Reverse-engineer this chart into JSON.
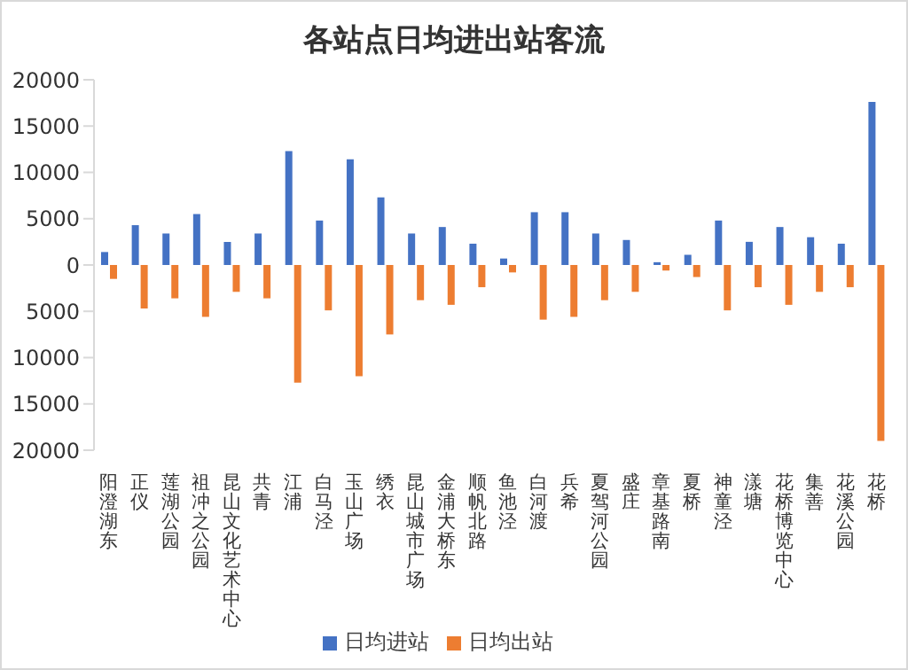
{
  "chart_data": {
    "type": "bar",
    "title": "各站点日均进出站客流",
    "categories": [
      "阳澄湖东",
      "正仪",
      "莲湖公园",
      "祖冲之公园",
      "昆山文化艺术中心",
      "共青",
      "江浦",
      "白马泾",
      "玉山广场",
      "绣衣",
      "昆山城市广场",
      "金浦大桥东",
      "顺帆北路",
      "鱼池泾",
      "白河渡",
      "兵希",
      "夏驾河公园",
      "盛庄",
      "章基路南",
      "夏桥",
      "神童泾",
      "漾塘",
      "花桥博览中心",
      "集善",
      "花溪公园",
      "花桥"
    ],
    "series": [
      {
        "name": "日均进站",
        "color": "#4472c4",
        "values": [
          1400,
          4300,
          3400,
          5500,
          2500,
          3400,
          12300,
          4800,
          11400,
          7300,
          3400,
          4100,
          2300,
          700,
          5700,
          5700,
          3400,
          2700,
          300,
          1100,
          4800,
          2500,
          4100,
          3000,
          2300,
          17600
        ]
      },
      {
        "name": "日均出站",
        "color": "#ed7d31",
        "values": [
          -1500,
          -4700,
          -3600,
          -5600,
          -2900,
          -3600,
          -12700,
          -4900,
          -12000,
          -7500,
          -3800,
          -4300,
          -2400,
          -800,
          -5900,
          -5600,
          -3800,
          -2900,
          -600,
          -1300,
          -4900,
          -2400,
          -4300,
          -2900,
          -2400,
          -19000
        ]
      }
    ],
    "ylim": [
      -20000,
      20000
    ],
    "yticks": [
      {
        "value": -20000,
        "label": "20000"
      },
      {
        "value": -15000,
        "label": "15000"
      },
      {
        "value": -10000,
        "label": "10000"
      },
      {
        "value": -5000,
        "label": "5000"
      },
      0,
      5000,
      10000,
      15000,
      20000
    ],
    "grid": false,
    "legend": "bottom"
  }
}
